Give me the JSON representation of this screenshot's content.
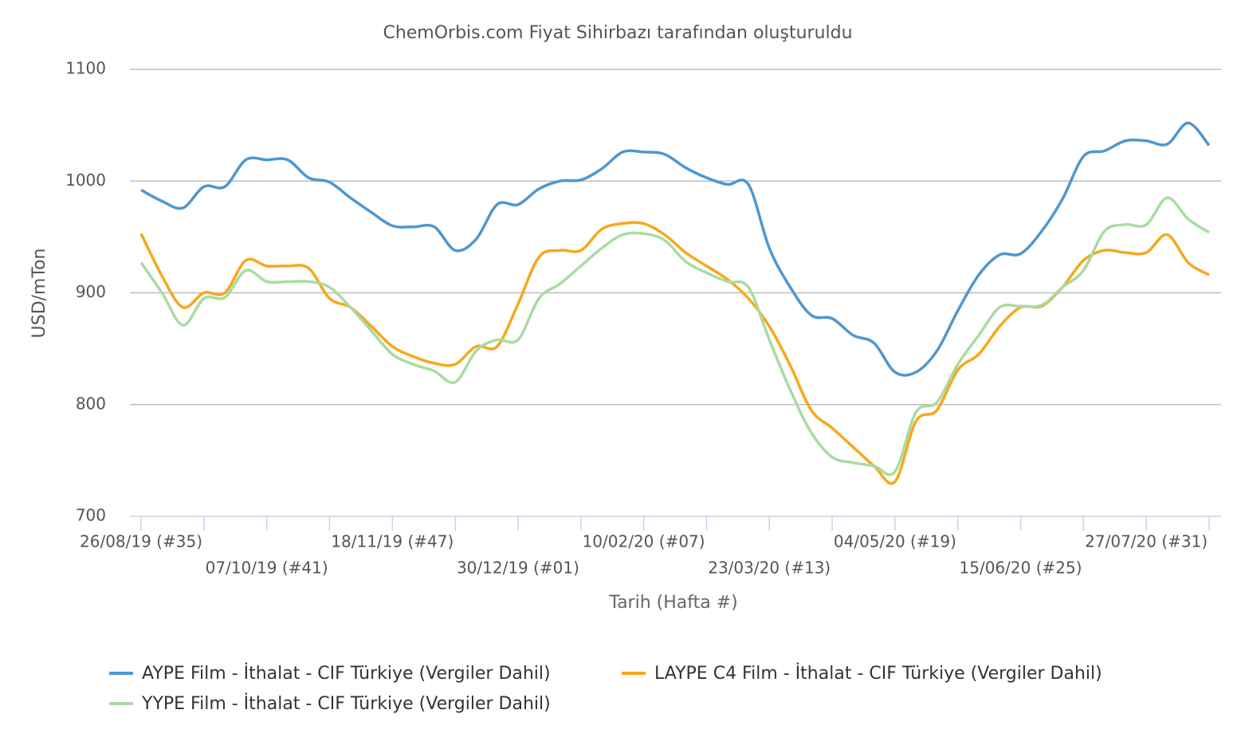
{
  "chart_data": {
    "type": "line",
    "title": "ChemOrbis.com Fiyat Sihirbazı tarafından oluşturuldu",
    "x_label": "Tarih (Hafta #)",
    "y_label": "USD/mTon",
    "categories": [
      "26/08/19 (#35)",
      null,
      null,
      null,
      null,
      null,
      "07/10/19 (#41)",
      null,
      null,
      null,
      null,
      null,
      "18/11/19 (#47)",
      null,
      null,
      null,
      null,
      null,
      "30/12/19 (#01)",
      null,
      null,
      null,
      null,
      null,
      "10/02/20 (#07)",
      null,
      null,
      null,
      null,
      null,
      "23/03/20 (#13)",
      null,
      null,
      null,
      null,
      null,
      "04/05/20 (#19)",
      null,
      null,
      null,
      null,
      null,
      "15/06/20 (#25)",
      null,
      null,
      null,
      null,
      null,
      "27/07/20 (#31)",
      null,
      null,
      null
    ],
    "series": [
      {
        "name": "AYPE Film - İthalat - CIF Türkiye (Vergiler Dahil)",
        "color": "#4e97d1",
        "values": [
          992,
          982,
          976,
          995,
          995,
          1019,
          1019,
          1019,
          1003,
          999,
          985,
          972,
          960,
          959,
          959,
          938,
          948,
          979,
          979,
          993,
          1000,
          1001,
          1011,
          1026,
          1026,
          1024,
          1012,
          1003,
          997,
          997,
          940,
          905,
          880,
          877,
          862,
          855,
          829,
          829,
          848,
          884,
          916,
          934,
          935,
          955,
          984,
          1022,
          1027,
          1036,
          1036,
          1033,
          1052,
          1032
        ]
      },
      {
        "name": "LAYPE C4 Film - İthalat - CIF Türkiye (Vergiler Dahil)",
        "color": "#f6a81c",
        "values": [
          953,
          915,
          887,
          900,
          900,
          929,
          924,
          924,
          922,
          895,
          887,
          870,
          852,
          843,
          837,
          836,
          852,
          852,
          890,
          932,
          938,
          938,
          957,
          962,
          962,
          952,
          936,
          924,
          912,
          895,
          870,
          835,
          795,
          779,
          762,
          745,
          731,
          785,
          795,
          831,
          845,
          870,
          887,
          888,
          905,
          929,
          938,
          936,
          936,
          952,
          927,
          916
        ]
      },
      {
        "name": "YYPE Film - İthalat - CIF Türkiye (Vergiler Dahil)",
        "color": "#a9dba3",
        "values": [
          927,
          900,
          871,
          895,
          896,
          920,
          910,
          910,
          910,
          905,
          887,
          866,
          845,
          836,
          830,
          820,
          848,
          858,
          858,
          895,
          908,
          924,
          940,
          952,
          953,
          947,
          928,
          918,
          910,
          905,
          858,
          813,
          775,
          753,
          748,
          745,
          740,
          793,
          802,
          836,
          862,
          887,
          888,
          889,
          905,
          920,
          955,
          961,
          961,
          985,
          966,
          954
        ]
      }
    ],
    "ylim": [
      700,
      1100
    ],
    "yticks": [
      700,
      800,
      900,
      1000,
      1100
    ],
    "grid": true
  }
}
